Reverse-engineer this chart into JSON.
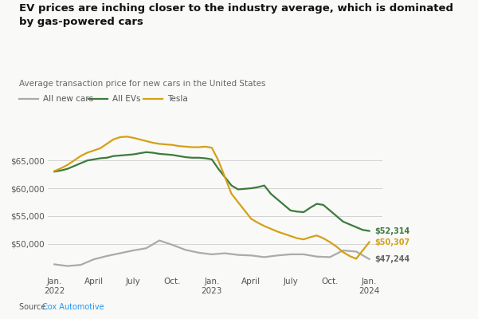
{
  "title": "EV prices are inching closer to the industry average, which is dominated\nby gas-powered cars",
  "subtitle": "Average transaction price for new cars in the United States",
  "source_prefix": "Source: ",
  "source_link": "Cox Automotive",
  "background_color": "#f9f9f7",
  "colors": {
    "all_new_cars": "#aaaaaa",
    "all_evs": "#3d7a3d",
    "tesla": "#d4a017"
  },
  "legend_labels": [
    "All new cars",
    "All EVs",
    "Tesla"
  ],
  "end_labels": {
    "all_evs": "$52,314",
    "tesla": "$50,307",
    "all_new_cars": "$47,244"
  },
  "x_tick_labels": [
    "Jan.\n2022",
    "April",
    "July",
    "Oct.",
    "Jan.\n2023",
    "April",
    "July",
    "Oct.",
    "Jan.\n2024"
  ],
  "x_tick_positions": [
    0,
    3,
    6,
    9,
    12,
    15,
    18,
    21,
    24
  ],
  "ylim": [
    44500,
    71500
  ],
  "yticks": [
    50000,
    55000,
    60000,
    65000
  ],
  "all_new_cars_x": [
    0,
    1,
    2,
    3,
    4,
    5,
    6,
    7,
    8,
    9,
    10,
    11,
    12,
    13,
    14,
    15,
    16,
    17,
    18,
    19,
    20,
    21,
    22,
    23,
    24
  ],
  "all_new_cars_y": [
    46300,
    46000,
    46200,
    47200,
    47800,
    48300,
    48800,
    49200,
    50600,
    49800,
    48900,
    48400,
    48100,
    48300,
    48000,
    47900,
    47600,
    47900,
    48100,
    48100,
    47700,
    47600,
    48800,
    48600,
    47244
  ],
  "all_evs_x": [
    0,
    0.5,
    1,
    1.5,
    2,
    2.5,
    3,
    3.5,
    4,
    4.5,
    5,
    5.5,
    6,
    6.5,
    7,
    7.5,
    8,
    8.5,
    9,
    9.5,
    10,
    10.5,
    11,
    11.5,
    12,
    12.5,
    13,
    13.5,
    14,
    14.5,
    15,
    15.5,
    16,
    16.5,
    17,
    17.5,
    18,
    18.5,
    19,
    19.5,
    20,
    20.5,
    21,
    21.5,
    22,
    22.5,
    23,
    23.5,
    24
  ],
  "all_evs_y": [
    63000,
    63200,
    63500,
    64000,
    64500,
    65000,
    65200,
    65400,
    65500,
    65800,
    65900,
    66000,
    66100,
    66300,
    66500,
    66400,
    66200,
    66100,
    66000,
    65800,
    65600,
    65500,
    65500,
    65400,
    65200,
    63500,
    62000,
    60500,
    59800,
    59900,
    60000,
    60200,
    60500,
    59000,
    58000,
    57000,
    56000,
    55800,
    55700,
    56500,
    57200,
    57000,
    56000,
    55000,
    54000,
    53500,
    53000,
    52500,
    52314
  ],
  "tesla_x": [
    0,
    0.5,
    1,
    1.5,
    2,
    2.5,
    3,
    3.5,
    4,
    4.5,
    5,
    5.5,
    6,
    6.5,
    7,
    7.5,
    8,
    8.5,
    9,
    9.5,
    10,
    10.5,
    11,
    11.5,
    12,
    12.5,
    13,
    13.5,
    14,
    14.5,
    15,
    15.5,
    16,
    16.5,
    17,
    17.5,
    18,
    18.5,
    19,
    19.5,
    20,
    20.5,
    21,
    21.5,
    22,
    22.5,
    23,
    23.5,
    24
  ],
  "tesla_y": [
    63100,
    63600,
    64200,
    65000,
    65800,
    66400,
    66800,
    67200,
    68000,
    68800,
    69200,
    69300,
    69100,
    68800,
    68500,
    68200,
    68000,
    67900,
    67800,
    67600,
    67500,
    67400,
    67400,
    67500,
    67300,
    65000,
    62000,
    59000,
    57500,
    56000,
    54500,
    53800,
    53200,
    52700,
    52200,
    51800,
    51400,
    51000,
    50800,
    51200,
    51500,
    51000,
    50300,
    49500,
    48500,
    47800,
    47300,
    48800,
    50307
  ]
}
